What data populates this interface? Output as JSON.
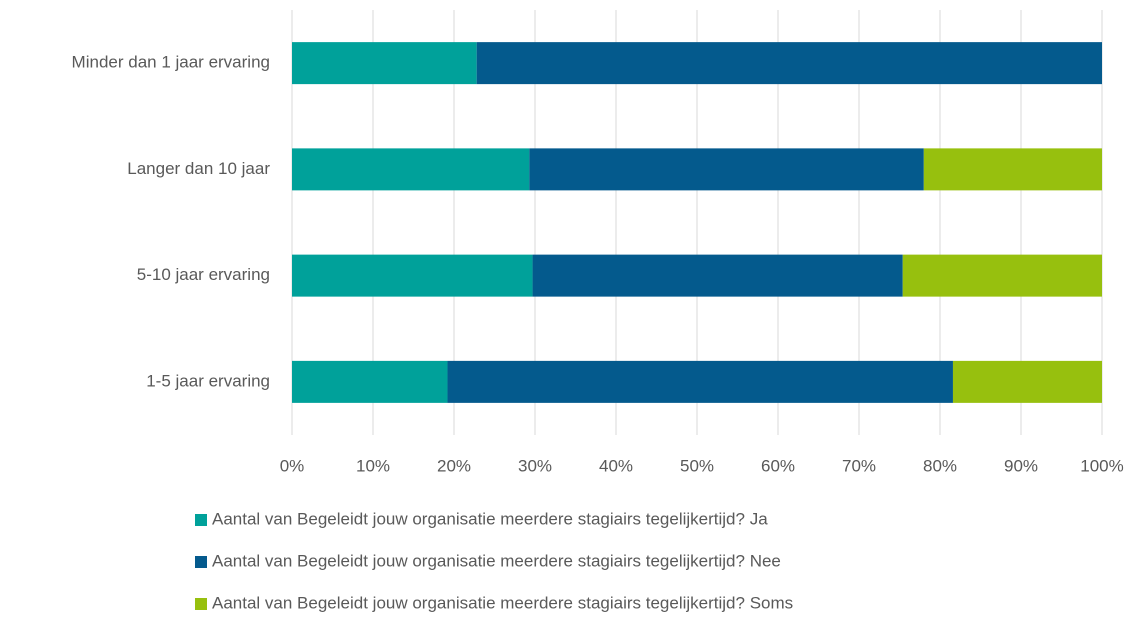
{
  "chart_data": {
    "type": "stacked_bar_horizontal",
    "categories": [
      "Minder dan 1 jaar ervaring",
      "Langer dan 10 jaar",
      "5-10 jaar ervaring",
      "1-5 jaar ervaring"
    ],
    "series": [
      {
        "name": "Aantal van Begeleidt jouw organisatie meerdere stagiairs tegelijkertijd? Ja",
        "color": "#00a19a",
        "values": [
          22.8,
          29.3,
          29.7,
          19.2
        ]
      },
      {
        "name": "Aantal van Begeleidt jouw organisatie meerdere stagiairs tegelijkertijd? Nee",
        "color": "#045a8d",
        "values": [
          77.2,
          48.7,
          45.7,
          62.4
        ]
      },
      {
        "name": "Aantal van Begeleidt jouw organisatie meerdere stagiairs tegelijkertijd? Soms",
        "color": "#97c00e",
        "values": [
          0,
          22.0,
          24.6,
          18.4
        ]
      }
    ],
    "xlim": [
      0,
      100
    ],
    "xticks": [
      {
        "value": 0,
        "label": "0%"
      },
      {
        "value": 10,
        "label": "10%"
      },
      {
        "value": 20,
        "label": "20%"
      },
      {
        "value": 30,
        "label": "30%"
      },
      {
        "value": 40,
        "label": "40%"
      },
      {
        "value": 50,
        "label": "50%"
      },
      {
        "value": 60,
        "label": "60%"
      },
      {
        "value": 70,
        "label": "70%"
      },
      {
        "value": 80,
        "label": "80%"
      },
      {
        "value": 90,
        "label": "90%"
      },
      {
        "value": 100,
        "label": "100%"
      }
    ],
    "grid": true,
    "legend": "bottom"
  }
}
